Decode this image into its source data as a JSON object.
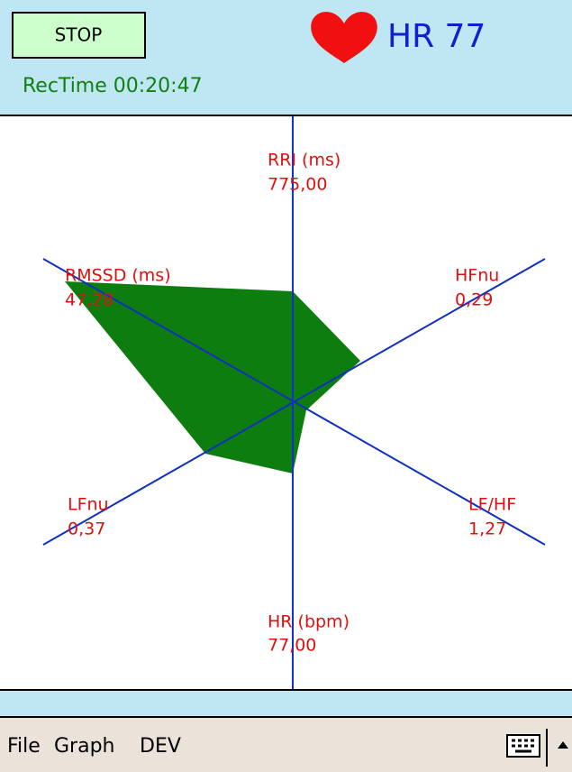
{
  "header": {
    "button": "STOP",
    "heart_rate": "HR 77",
    "rec_time": "RecTime 00:20:47"
  },
  "radar": {
    "axes": [
      {
        "label": "RRI (ms)",
        "value": "775,00"
      },
      {
        "label": "HFnu",
        "value": "0,29"
      },
      {
        "label": "LF/HF",
        "value": "1,27"
      },
      {
        "label": "HR (bpm)",
        "value": "77,00"
      },
      {
        "label": "LFnu",
        "value": "0,37"
      },
      {
        "label": "RMSSD (ms)",
        "value": "47,28"
      }
    ]
  },
  "menu": {
    "items": [
      "File",
      "Graph",
      "DEV"
    ]
  }
}
